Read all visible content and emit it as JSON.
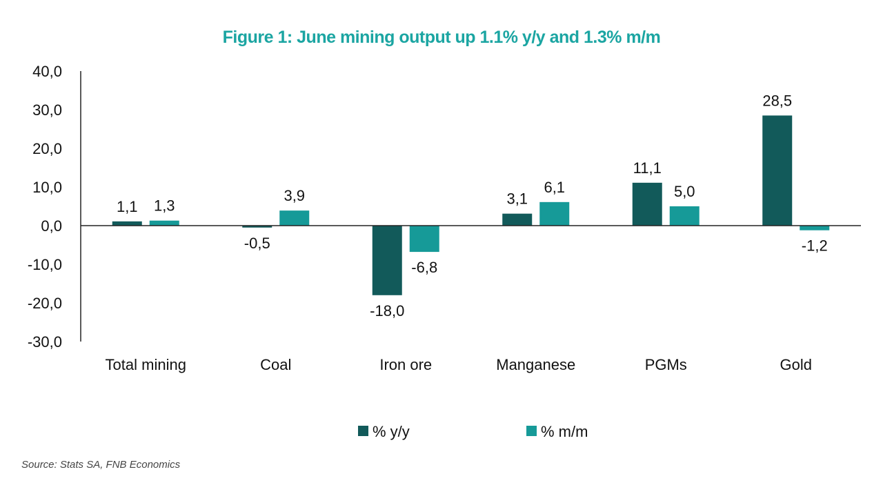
{
  "chart_data": {
    "type": "bar",
    "title": "Figure 1: June mining output up 1.1% y/y and 1.3% m/m",
    "categories": [
      "Total mining",
      "Coal",
      "Iron ore",
      "Manganese",
      "PGMs",
      "Gold"
    ],
    "series": [
      {
        "name": "% y/y",
        "color": "#125a5a",
        "values": [
          1.1,
          -0.5,
          -18.0,
          3.1,
          11.1,
          28.5
        ]
      },
      {
        "name": "% m/m",
        "color": "#169a98",
        "values": [
          1.3,
          3.9,
          -6.8,
          6.1,
          5.0,
          -1.2
        ]
      }
    ],
    "ylim": [
      -30,
      40
    ],
    "yticks": [
      40,
      30,
      20,
      10,
      0,
      -10,
      -20,
      -30
    ],
    "decimal_separator": ",",
    "grid": false,
    "legend_position": "bottom",
    "xlabel": "",
    "ylabel": ""
  },
  "source": "Source: Stats SA, FNB Economics"
}
